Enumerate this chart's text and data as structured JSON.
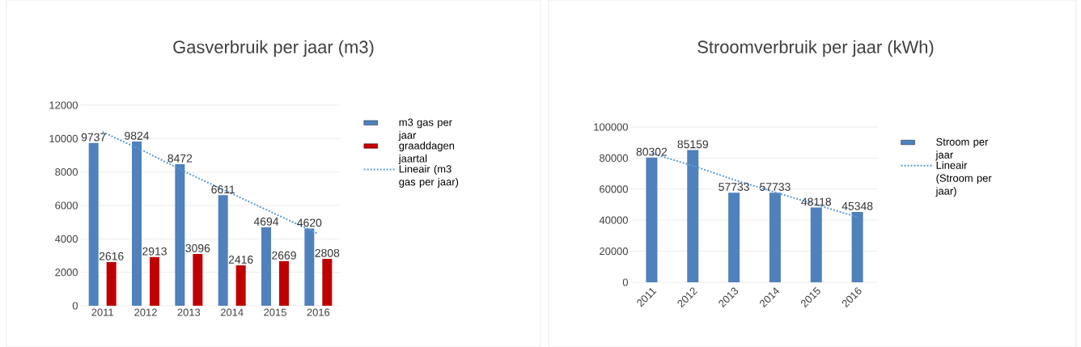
{
  "chart_data": [
    {
      "type": "bar",
      "title": "Gasverbruik per jaar (m3)",
      "categories": [
        "2011",
        "2012",
        "2013",
        "2014",
        "2015",
        "2016"
      ],
      "series": [
        {
          "name": "m3 gas per jaar",
          "color": "#4f81bd",
          "values": [
            9737,
            9824,
            8472,
            6611,
            4694,
            4620
          ],
          "data_labels": true
        },
        {
          "name": "graaddagen jaartal",
          "color": "#c00000",
          "values": [
            2616,
            2913,
            3096,
            2416,
            2669,
            2808
          ],
          "data_labels": true
        },
        {
          "name": "Lineair (m3 gas per jaar)",
          "type": "line",
          "line_style": "dotted",
          "color": "#5b9bd5",
          "values": [
            10400,
            9200,
            7900,
            6700,
            5500,
            4300
          ]
        }
      ],
      "ylim": [
        0,
        12000
      ],
      "yticks": [
        0,
        2000,
        4000,
        6000,
        8000,
        10000,
        12000
      ],
      "grid": "y",
      "legend": "right"
    },
    {
      "type": "bar",
      "title": "Stroomverbruik per jaar (kWh)",
      "categories": [
        "2011",
        "2012",
        "2013",
        "2014",
        "2015",
        "2016"
      ],
      "series": [
        {
          "name": "Stroom per jaar",
          "color": "#4f81bd",
          "values": [
            80302,
            85159,
            57733,
            57733,
            48118,
            45348
          ],
          "data_labels": true
        },
        {
          "name": "Lineair (Stroom per jaar)",
          "type": "line",
          "line_style": "dotted",
          "color": "#5b9bd5",
          "values": [
            83000,
            75000,
            66000,
            58000,
            50000,
            42000
          ]
        }
      ],
      "ylim": [
        0,
        100000
      ],
      "yticks": [
        0,
        20000,
        40000,
        60000,
        80000,
        100000
      ],
      "grid": "y",
      "legend": "right"
    }
  ]
}
